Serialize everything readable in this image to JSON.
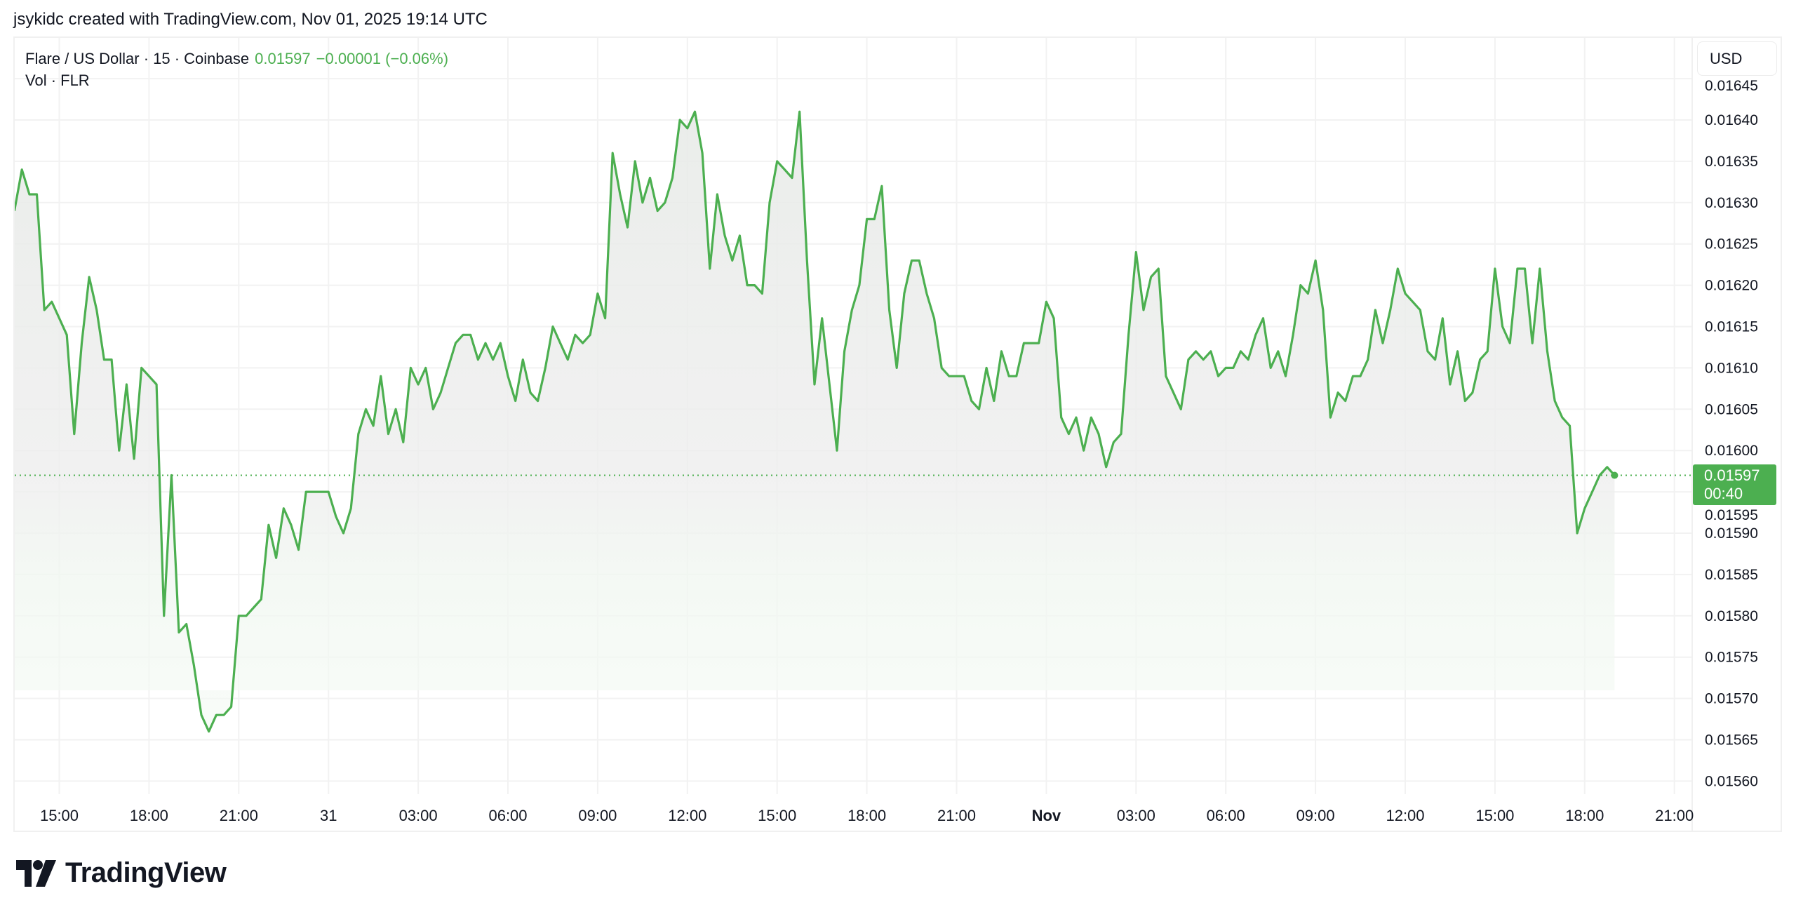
{
  "caption": "jsykidc created with TradingView.com, Nov 01, 2025 19:14 UTC",
  "legend": {
    "symbol": "Flare / US Dollar · 15 · Coinbase",
    "last": "0.01597",
    "change": "−0.00001 (−0.06%)",
    "volume": "Vol · FLR"
  },
  "currency_button": "USD",
  "last_price_label": {
    "price": "0.01597",
    "countdown": "00:40"
  },
  "logo_text": "TradingView",
  "colors": {
    "line": "#4caf50",
    "grid": "#f2f2f2",
    "label_bg": "#4caf50"
  },
  "chart_data": {
    "type": "area",
    "title": "Flare / US Dollar · 15 · Coinbase",
    "interval_minutes": 15,
    "start": "2025-10-30 13:30",
    "end": "2025-11-01 19:00",
    "ylabel": "USD",
    "ylim": [
      0.01557,
      0.01647
    ],
    "grid": true,
    "last_value": 0.01597,
    "price_ticks": [
      "0.01645",
      "0.01640",
      "0.01635",
      "0.01630",
      "0.01625",
      "0.01620",
      "0.01615",
      "0.01610",
      "0.01605",
      "0.01600",
      "0.01595",
      "0.01590",
      "0.01585",
      "0.01580",
      "0.01575",
      "0.01570",
      "0.01565",
      "0.01560"
    ],
    "time_ticks": [
      "15:00",
      "18:00",
      "21:00",
      "31",
      "03:00",
      "06:00",
      "09:00",
      "12:00",
      "15:00",
      "18:00",
      "21:00",
      "Nov",
      "03:00",
      "06:00",
      "09:00",
      "12:00",
      "15:00",
      "18:00",
      "21:00"
    ],
    "bold_time_ticks": [
      "Nov"
    ],
    "values": [
      0.01629,
      0.01634,
      0.01631,
      0.01631,
      0.01617,
      0.01618,
      0.01616,
      0.01614,
      0.01602,
      0.01613,
      0.01621,
      0.01617,
      0.01611,
      0.01611,
      0.016,
      0.01608,
      0.01599,
      0.0161,
      0.01609,
      0.01608,
      0.0158,
      0.01597,
      0.01578,
      0.01579,
      0.01574,
      0.01568,
      0.01566,
      0.01568,
      0.01568,
      0.01569,
      0.0158,
      0.0158,
      0.01581,
      0.01582,
      0.01591,
      0.01587,
      0.01593,
      0.01591,
      0.01588,
      0.01595,
      0.01595,
      0.01595,
      0.01595,
      0.01592,
      0.0159,
      0.01593,
      0.01602,
      0.01605,
      0.01603,
      0.01609,
      0.01602,
      0.01605,
      0.01601,
      0.0161,
      0.01608,
      0.0161,
      0.01605,
      0.01607,
      0.0161,
      0.01613,
      0.01614,
      0.01614,
      0.01611,
      0.01613,
      0.01611,
      0.01613,
      0.01609,
      0.01606,
      0.01611,
      0.01607,
      0.01606,
      0.0161,
      0.01615,
      0.01613,
      0.01611,
      0.01614,
      0.01613,
      0.01614,
      0.01619,
      0.01616,
      0.01636,
      0.01631,
      0.01627,
      0.01635,
      0.0163,
      0.01633,
      0.01629,
      0.0163,
      0.01633,
      0.0164,
      0.01639,
      0.01641,
      0.01636,
      0.01622,
      0.01631,
      0.01626,
      0.01623,
      0.01626,
      0.0162,
      0.0162,
      0.01619,
      0.0163,
      0.01635,
      0.01634,
      0.01633,
      0.01641,
      0.01623,
      0.01608,
      0.01616,
      0.01608,
      0.016,
      0.01612,
      0.01617,
      0.0162,
      0.01628,
      0.01628,
      0.01632,
      0.01617,
      0.0161,
      0.01619,
      0.01623,
      0.01623,
      0.01619,
      0.01616,
      0.0161,
      0.01609,
      0.01609,
      0.01609,
      0.01606,
      0.01605,
      0.0161,
      0.01606,
      0.01612,
      0.01609,
      0.01609,
      0.01613,
      0.01613,
      0.01613,
      0.01618,
      0.01616,
      0.01604,
      0.01602,
      0.01604,
      0.016,
      0.01604,
      0.01602,
      0.01598,
      0.01601,
      0.01602,
      0.01614,
      0.01624,
      0.01617,
      0.01621,
      0.01622,
      0.01609,
      0.01607,
      0.01605,
      0.01611,
      0.01612,
      0.01611,
      0.01612,
      0.01609,
      0.0161,
      0.0161,
      0.01612,
      0.01611,
      0.01614,
      0.01616,
      0.0161,
      0.01612,
      0.01609,
      0.01614,
      0.0162,
      0.01619,
      0.01623,
      0.01617,
      0.01604,
      0.01607,
      0.01606,
      0.01609,
      0.01609,
      0.01611,
      0.01617,
      0.01613,
      0.01617,
      0.01622,
      0.01619,
      0.01618,
      0.01617,
      0.01612,
      0.01611,
      0.01616,
      0.01608,
      0.01612,
      0.01606,
      0.01607,
      0.01611,
      0.01612,
      0.01622,
      0.01615,
      0.01613,
      0.01622,
      0.01622,
      0.01613,
      0.01622,
      0.01612,
      0.01606,
      0.01604,
      0.01603,
      0.0159,
      0.01593,
      0.01595,
      0.01597,
      0.01598,
      0.01597
    ]
  }
}
